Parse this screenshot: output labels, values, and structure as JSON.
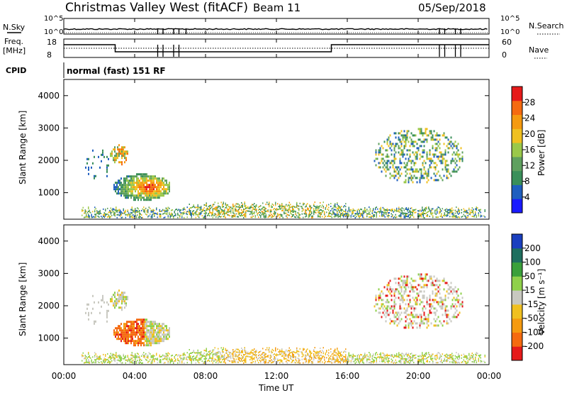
{
  "header": {
    "title": "Christmas Valley West (fitACF)",
    "beam": "Beam 11",
    "date": "05/Sep/2018"
  },
  "params": {
    "nsky_label": "N.Sky",
    "nsearch_label": "N.Search",
    "freq_label_line1": "Freq.",
    "freq_label_line2": "[MHz]",
    "nave_label": "Nave",
    "cpid_label": "CPID",
    "cpid_text": "normal (fast) 151 RF",
    "noise_ticks_left": [
      "10^5",
      "10^0"
    ],
    "noise_ticks_right": [
      "10^5",
      "10^0"
    ],
    "freq_ticks": [
      "18",
      "8"
    ],
    "nave_ticks": [
      "60",
      "0"
    ]
  },
  "panels": {
    "power": {
      "ylabel": "Slant Range [km]",
      "yticks": [
        "4000",
        "3000",
        "2000",
        "1000"
      ],
      "colorbar_label": "Power [dB]",
      "colorbar_ticks": [
        "28",
        "24",
        "20",
        "16",
        "12",
        "8",
        "4"
      ]
    },
    "velocity": {
      "ylabel": "Slant Range [km]",
      "yticks": [
        "4000",
        "3000",
        "2000",
        "1000"
      ],
      "colorbar_label": "Velocity [m s⁻¹]",
      "colorbar_ticks": [
        "200",
        "100",
        "50",
        "15",
        "-15",
        "-50",
        "-100",
        "-200"
      ]
    }
  },
  "xaxis": {
    "label": "Time UT",
    "ticks": [
      "00:00",
      "04:00",
      "08:00",
      "12:00",
      "16:00",
      "20:00",
      "00:00"
    ]
  },
  "colors": {
    "power_scale": [
      "#1a1aff",
      "#1f5fbf",
      "#3a8f5a",
      "#5fa05f",
      "#9ac84a",
      "#f0c020",
      "#f59a10",
      "#f56a10",
      "#e61a1a"
    ],
    "velocity_scale": [
      "#e61a1a",
      "#f56a10",
      "#f59a10",
      "#f0c020",
      "#c8c8c0",
      "#8fd04a",
      "#3aa03a",
      "#1f6f5f",
      "#1a3fbf"
    ]
  },
  "chart_data": {
    "type": "heatmap",
    "x_range_hours": [
      0,
      24
    ],
    "y_range_km": [
      180,
      4500
    ],
    "regions": [
      {
        "name": "near-range band",
        "t0": 1.0,
        "t1": 23.8,
        "r0": 200,
        "r1": 500
      },
      {
        "name": "evening patch",
        "t0": 2.8,
        "t1": 6.0,
        "r0": 800,
        "r1": 1600
      },
      {
        "name": "evening upper patch",
        "t0": 2.6,
        "t1": 3.6,
        "r0": 1900,
        "r1": 2500
      },
      {
        "name": "night echoes",
        "t0": 17.5,
        "t1": 22.5,
        "r0": 1300,
        "r1": 3000
      }
    ]
  }
}
